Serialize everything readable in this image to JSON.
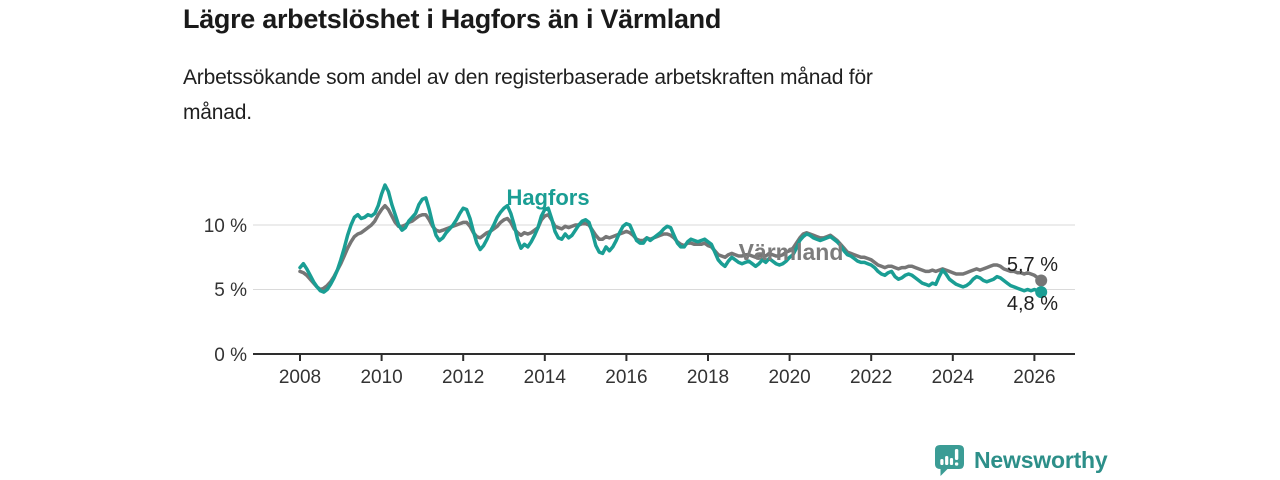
{
  "header": {
    "title": "Lägre arbetslöshet i Hagfors än i Värmland",
    "subtitle_lines": [
      "Arbetssökande som andel av den registerbaserade arbetskraften månad för",
      "månad."
    ]
  },
  "chart_data": {
    "type": "line",
    "unit": "%",
    "x_start": {
      "year": 2008,
      "month": 1
    },
    "x_interval": "monthly",
    "x_ticks": [
      "2008",
      "2010",
      "2012",
      "2014",
      "2016",
      "2018",
      "2020",
      "2022",
      "2024",
      "2026"
    ],
    "y_ticks": [
      {
        "value": 0,
        "label": "0 %"
      },
      {
        "value": 5,
        "label": "5 %"
      },
      {
        "value": 10,
        "label": "10 %"
      }
    ],
    "ylim": [
      0,
      14
    ],
    "grid": "horizontal",
    "legend_position": "inline-labels",
    "series": [
      {
        "name": "Värmland",
        "color": "#767676",
        "label_color": "#7c7c7c",
        "end_label": "5,7 %",
        "end_value": 5.7,
        "values": [
          6.4,
          6.3,
          6.1,
          5.8,
          5.5,
          5.2,
          5.0,
          5.1,
          5.3,
          5.6,
          6.0,
          6.5,
          7.0,
          7.6,
          8.2,
          8.7,
          9.1,
          9.3,
          9.4,
          9.6,
          9.8,
          10.0,
          10.3,
          10.8,
          11.2,
          11.5,
          11.2,
          10.7,
          10.2,
          9.9,
          9.9,
          10.0,
          10.2,
          10.3,
          10.5,
          10.7,
          10.8,
          10.8,
          10.4,
          9.9,
          9.6,
          9.5,
          9.6,
          9.7,
          9.8,
          9.9,
          10.0,
          10.1,
          10.2,
          10.2,
          9.9,
          9.4,
          9.1,
          9.0,
          9.2,
          9.4,
          9.5,
          9.7,
          9.9,
          10.2,
          10.4,
          10.5,
          10.2,
          9.7,
          9.4,
          9.2,
          9.4,
          9.3,
          9.4,
          9.6,
          9.8,
          10.4,
          10.7,
          10.8,
          10.4,
          9.9,
          9.8,
          9.7,
          9.9,
          9.8,
          9.9,
          10.0,
          10.0,
          10.1,
          10.1,
          10.0,
          9.6,
          9.2,
          8.9,
          8.9,
          9.1,
          9.0,
          9.1,
          9.2,
          9.3,
          9.4,
          9.5,
          9.4,
          9.2,
          8.9,
          8.8,
          8.8,
          9.0,
          8.9,
          9.0,
          9.1,
          9.2,
          9.3,
          9.3,
          9.2,
          9.0,
          8.7,
          8.5,
          8.4,
          8.6,
          8.6,
          8.5,
          8.5,
          8.5,
          8.6,
          8.4,
          8.3,
          8.0,
          7.7,
          7.6,
          7.5,
          7.7,
          7.8,
          7.7,
          7.6,
          7.6,
          7.7,
          7.7,
          7.6,
          7.5,
          7.6,
          7.7,
          7.6,
          7.8,
          7.7,
          7.6,
          7.6,
          7.7,
          7.9,
          8.0,
          8.2,
          8.6,
          9.0,
          9.3,
          9.4,
          9.3,
          9.2,
          9.1,
          9.0,
          9.0,
          9.1,
          9.2,
          9.0,
          8.8,
          8.5,
          8.2,
          7.9,
          7.8,
          7.7,
          7.6,
          7.5,
          7.5,
          7.4,
          7.3,
          7.1,
          6.9,
          6.8,
          6.7,
          6.8,
          6.8,
          6.7,
          6.6,
          6.7,
          6.7,
          6.8,
          6.8,
          6.7,
          6.6,
          6.5,
          6.4,
          6.4,
          6.5,
          6.4,
          6.5,
          6.6,
          6.5,
          6.4,
          6.3,
          6.2,
          6.2,
          6.2,
          6.3,
          6.4,
          6.5,
          6.6,
          6.5,
          6.6,
          6.7,
          6.8,
          6.9,
          6.9,
          6.8,
          6.6,
          6.5,
          6.4,
          6.4,
          6.3,
          6.3,
          6.2,
          6.3,
          6.2,
          6.1,
          5.9,
          5.7
        ]
      },
      {
        "name": "Hagfors",
        "color": "#1a9e94",
        "label_color": "#1a9e94",
        "end_label": "4,8 %",
        "end_value": 4.8,
        "values": [
          6.7,
          7.0,
          6.6,
          6.1,
          5.6,
          5.2,
          4.9,
          4.8,
          5.0,
          5.4,
          5.9,
          6.5,
          7.3,
          8.2,
          9.2,
          10.0,
          10.6,
          10.8,
          10.5,
          10.6,
          10.8,
          10.7,
          10.9,
          11.5,
          12.4,
          13.1,
          12.6,
          11.6,
          10.8,
          10.0,
          9.6,
          9.8,
          10.3,
          10.6,
          10.9,
          11.6,
          12.0,
          12.1,
          11.2,
          10.1,
          9.2,
          8.8,
          9.0,
          9.4,
          9.7,
          10.0,
          10.4,
          10.9,
          11.3,
          11.2,
          10.5,
          9.5,
          8.6,
          8.1,
          8.4,
          8.9,
          9.5,
          10.0,
          10.6,
          11.0,
          11.3,
          11.5,
          10.9,
          10.0,
          8.9,
          8.2,
          8.5,
          8.3,
          8.7,
          9.2,
          9.8,
          10.7,
          11.2,
          11.3,
          10.5,
          9.5,
          9.0,
          8.9,
          9.3,
          9.0,
          9.2,
          9.6,
          10.0,
          10.3,
          10.4,
          10.2,
          9.4,
          8.4,
          7.9,
          7.8,
          8.3,
          8.0,
          8.3,
          8.8,
          9.4,
          9.9,
          10.1,
          10.0,
          9.4,
          8.8,
          8.6,
          8.6,
          9.0,
          8.8,
          9.0,
          9.2,
          9.4,
          9.7,
          9.9,
          9.8,
          9.2,
          8.6,
          8.3,
          8.3,
          8.7,
          8.9,
          8.8,
          8.7,
          8.8,
          8.9,
          8.7,
          8.5,
          7.9,
          7.3,
          7.0,
          6.8,
          7.2,
          7.5,
          7.3,
          7.1,
          7.0,
          7.1,
          7.2,
          7.0,
          6.8,
          7.0,
          7.3,
          7.1,
          7.4,
          7.2,
          7.0,
          6.9,
          7.0,
          7.2,
          7.5,
          7.7,
          8.2,
          8.8,
          9.1,
          9.3,
          9.2,
          9.0,
          8.9,
          8.8,
          8.9,
          9.0,
          9.1,
          8.9,
          8.7,
          8.4,
          8.0,
          7.7,
          7.6,
          7.4,
          7.2,
          7.1,
          7.1,
          7.0,
          6.9,
          6.7,
          6.4,
          6.2,
          6.1,
          6.3,
          6.4,
          6.0,
          5.8,
          5.9,
          6.1,
          6.2,
          6.1,
          5.9,
          5.7,
          5.5,
          5.4,
          5.3,
          5.5,
          5.4,
          6.0,
          6.5,
          6.2,
          5.8,
          5.6,
          5.4,
          5.3,
          5.2,
          5.3,
          5.5,
          5.8,
          6.0,
          5.9,
          5.7,
          5.6,
          5.7,
          5.8,
          6.0,
          5.9,
          5.7,
          5.5,
          5.3,
          5.2,
          5.1,
          5.0,
          4.9,
          5.0,
          4.9,
          5.0,
          4.9,
          4.8
        ]
      }
    ]
  },
  "footer": {
    "brand": "Newsworthy",
    "logo_icon": "bar-chart-speech-bubble-icon"
  }
}
